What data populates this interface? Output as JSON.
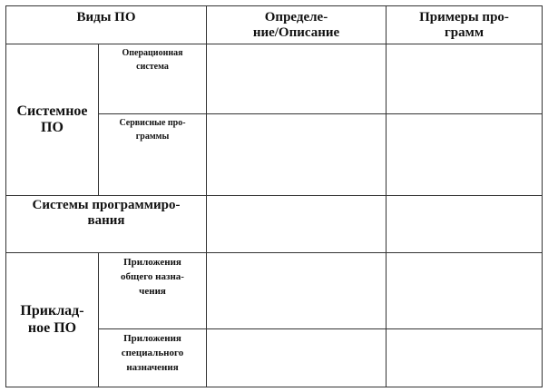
{
  "header": {
    "types": "Виды ПО",
    "definition": "Определе-\nние/Описание",
    "examples": "Примеры про-\nграмм"
  },
  "rows": {
    "system_software": "Системное\nПО",
    "operating_system": "Операционная\nсистема",
    "utility_programs": "Сервисные про-\nграммы",
    "programming_systems": "Системы программиро-\nвания",
    "application_software": "Приклад-\nное ПО",
    "general_apps": "Приложения\nобщего  назна-\nчения",
    "special_apps": "Приложения\nспециального\nназначения"
  }
}
